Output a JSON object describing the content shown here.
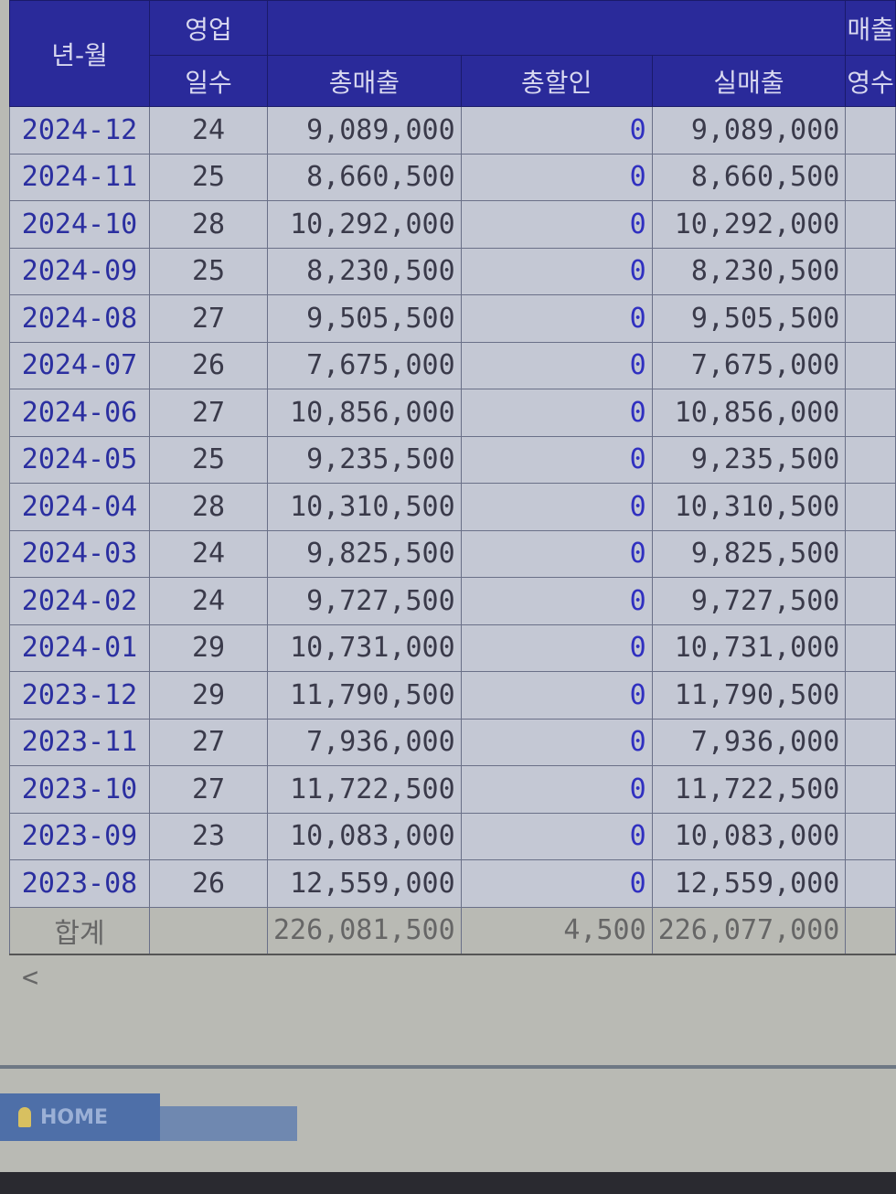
{
  "columns": {
    "year_month": "년-월",
    "business_top": "영업",
    "business_days": "일수",
    "gross_sales": "총매출",
    "total_discount": "총할인",
    "net_sales": "실매출",
    "partial_sales_top": "매출",
    "partial_receipts": "영수"
  },
  "rows": [
    {
      "ym": "2024-12",
      "days": "24",
      "gross": "9,089,000",
      "discount": "0",
      "net": "9,089,000"
    },
    {
      "ym": "2024-11",
      "days": "25",
      "gross": "8,660,500",
      "discount": "0",
      "net": "8,660,500"
    },
    {
      "ym": "2024-10",
      "days": "28",
      "gross": "10,292,000",
      "discount": "0",
      "net": "10,292,000"
    },
    {
      "ym": "2024-09",
      "days": "25",
      "gross": "8,230,500",
      "discount": "0",
      "net": "8,230,500"
    },
    {
      "ym": "2024-08",
      "days": "27",
      "gross": "9,505,500",
      "discount": "0",
      "net": "9,505,500"
    },
    {
      "ym": "2024-07",
      "days": "26",
      "gross": "7,675,000",
      "discount": "0",
      "net": "7,675,000"
    },
    {
      "ym": "2024-06",
      "days": "27",
      "gross": "10,856,000",
      "discount": "0",
      "net": "10,856,000"
    },
    {
      "ym": "2024-05",
      "days": "25",
      "gross": "9,235,500",
      "discount": "0",
      "net": "9,235,500"
    },
    {
      "ym": "2024-04",
      "days": "28",
      "gross": "10,310,500",
      "discount": "0",
      "net": "10,310,500"
    },
    {
      "ym": "2024-03",
      "days": "24",
      "gross": "9,825,500",
      "discount": "0",
      "net": "9,825,500"
    },
    {
      "ym": "2024-02",
      "days": "24",
      "gross": "9,727,500",
      "discount": "0",
      "net": "9,727,500"
    },
    {
      "ym": "2024-01",
      "days": "29",
      "gross": "10,731,000",
      "discount": "0",
      "net": "10,731,000"
    },
    {
      "ym": "2023-12",
      "days": "29",
      "gross": "11,790,500",
      "discount": "0",
      "net": "11,790,500"
    },
    {
      "ym": "2023-11",
      "days": "27",
      "gross": "7,936,000",
      "discount": "0",
      "net": "7,936,000"
    },
    {
      "ym": "2023-10",
      "days": "27",
      "gross": "11,722,500",
      "discount": "0",
      "net": "11,722,500"
    },
    {
      "ym": "2023-09",
      "days": "23",
      "gross": "10,083,000",
      "discount": "0",
      "net": "10,083,000"
    },
    {
      "ym": "2023-08",
      "days": "26",
      "gross": "12,559,000",
      "discount": "0",
      "net": "12,559,000"
    }
  ],
  "total": {
    "label": "합계",
    "gross": "226,081,500",
    "discount": "4,500",
    "net": "226,077,000"
  },
  "footer": {
    "home_label": "HOME",
    "scroll_left": "<"
  },
  "colors": {
    "header": "#2a2a9a",
    "row": "#c4c8d4",
    "zero": "#3030c0"
  }
}
